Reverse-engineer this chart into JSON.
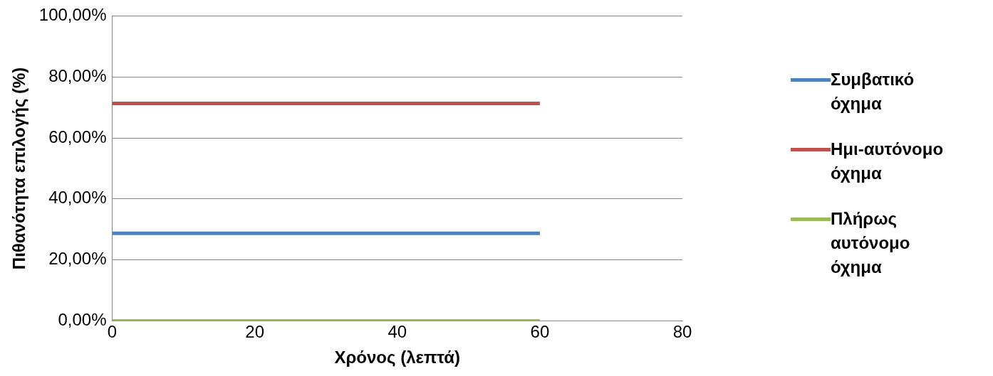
{
  "chart_data": {
    "type": "line",
    "xlabel": "Χρόνος (λεπτά)",
    "ylabel": "Πιθανότητα επιλογής (%)",
    "x": [
      0,
      60
    ],
    "series": [
      {
        "name": "Συμβατικό όχημα",
        "color": "#4f81bd",
        "values": [
          28.7,
          28.7
        ]
      },
      {
        "name": "Ημι-αυτόνομο όχημα",
        "color": "#c0504d",
        "values": [
          71.3,
          71.3
        ]
      },
      {
        "name": "Πλήρως αυτόνομο όχημα",
        "color": "#9bbb59",
        "values": [
          0,
          0
        ]
      }
    ],
    "xlim": [
      0,
      80
    ],
    "xticks": [
      0,
      20,
      40,
      60,
      80
    ],
    "ylim": [
      0,
      100
    ],
    "yticks": [
      {
        "value": 0,
        "label": "0,00%"
      },
      {
        "value": 20,
        "label": "20,00%"
      },
      {
        "value": 40,
        "label": "40,00%"
      },
      {
        "value": 60,
        "label": "60,00%"
      },
      {
        "value": 80,
        "label": "80,00%"
      },
      {
        "value": 100,
        "label": "100,00%"
      }
    ],
    "grid": "y",
    "legend": "right",
    "marker": "none",
    "line_style": "solid"
  }
}
